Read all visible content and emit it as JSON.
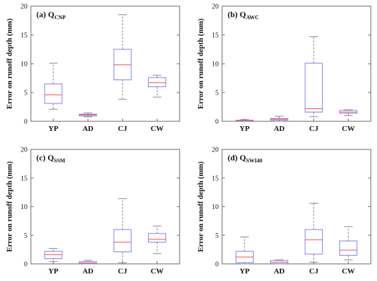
{
  "colors": {
    "box": "#7f7ff0",
    "median": "#ff4b4b",
    "whisker": "#888888",
    "frame": "#666666"
  },
  "chart_data": [
    {
      "type": "box",
      "title": "(a) Q",
      "title_sub": "CNP",
      "ylabel": "Error on runoff depth (mm)",
      "ylim": [
        0,
        20
      ],
      "yticks": [
        0,
        5,
        10,
        15,
        20
      ],
      "categories": [
        "YP",
        "AD",
        "CJ",
        "CW"
      ],
      "boxes": [
        {
          "min": 2.1,
          "q1": 3.1,
          "median": 4.6,
          "q3": 6.5,
          "max": 10.1
        },
        {
          "min": 0.8,
          "q1": 0.95,
          "median": 1.1,
          "q3": 1.25,
          "max": 1.45
        },
        {
          "min": 3.8,
          "q1": 7.2,
          "median": 9.8,
          "q3": 12.5,
          "max": 18.5
        },
        {
          "min": 4.2,
          "q1": 6.0,
          "median": 6.7,
          "q3": 7.6,
          "max": 8.0
        }
      ]
    },
    {
      "type": "box",
      "title": "(b) Q",
      "title_sub": "AWC",
      "ylabel": "Error on runoff depth (mm)",
      "ylim": [
        0,
        20
      ],
      "yticks": [
        0,
        5,
        10,
        15,
        20
      ],
      "categories": [
        "YP",
        "AD",
        "CJ",
        "CW"
      ],
      "boxes": [
        {
          "min": 0.0,
          "q1": 0.05,
          "median": 0.1,
          "q3": 0.2,
          "max": 0.3
        },
        {
          "min": 0.0,
          "q1": 0.2,
          "median": 0.35,
          "q3": 0.5,
          "max": 0.9
        },
        {
          "min": 0.8,
          "q1": 1.6,
          "median": 2.2,
          "q3": 10.1,
          "max": 14.7
        },
        {
          "min": 1.0,
          "q1": 1.4,
          "median": 1.6,
          "q3": 1.9,
          "max": 2.0
        }
      ]
    },
    {
      "type": "box",
      "title": "(c) Q",
      "title_sub": "SSM",
      "ylabel": "Error on runoff depth (mm)",
      "ylim": [
        0,
        20
      ],
      "yticks": [
        0,
        5,
        10,
        15,
        20
      ],
      "categories": [
        "YP",
        "AD",
        "CJ",
        "CW"
      ],
      "boxes": [
        {
          "min": 0.4,
          "q1": 0.9,
          "median": 1.6,
          "q3": 2.2,
          "max": 2.7
        },
        {
          "min": 0.0,
          "q1": 0.05,
          "median": 0.15,
          "q3": 0.4,
          "max": 0.6
        },
        {
          "min": 0.2,
          "q1": 2.1,
          "median": 3.8,
          "q3": 6.0,
          "max": 11.4
        },
        {
          "min": 1.8,
          "q1": 3.8,
          "median": 4.3,
          "q3": 5.3,
          "max": 6.6
        }
      ]
    },
    {
      "type": "box",
      "title": "(d) Q",
      "title_sub": "SWI40",
      "ylabel": "Error on runoff depth (mm)",
      "ylim": [
        0,
        20
      ],
      "yticks": [
        0,
        5,
        10,
        15,
        20
      ],
      "categories": [
        "YP",
        "AD",
        "CJ",
        "CW"
      ],
      "boxes": [
        {
          "min": 0.0,
          "q1": 0.2,
          "median": 1.2,
          "q3": 2.2,
          "max": 4.7
        },
        {
          "min": 0.0,
          "q1": 0.05,
          "median": 0.3,
          "q3": 0.6,
          "max": 0.7
        },
        {
          "min": 0.3,
          "q1": 1.7,
          "median": 4.2,
          "q3": 6.0,
          "max": 10.6
        },
        {
          "min": 0.7,
          "q1": 1.5,
          "median": 2.4,
          "q3": 4.0,
          "max": 6.5
        }
      ]
    }
  ]
}
